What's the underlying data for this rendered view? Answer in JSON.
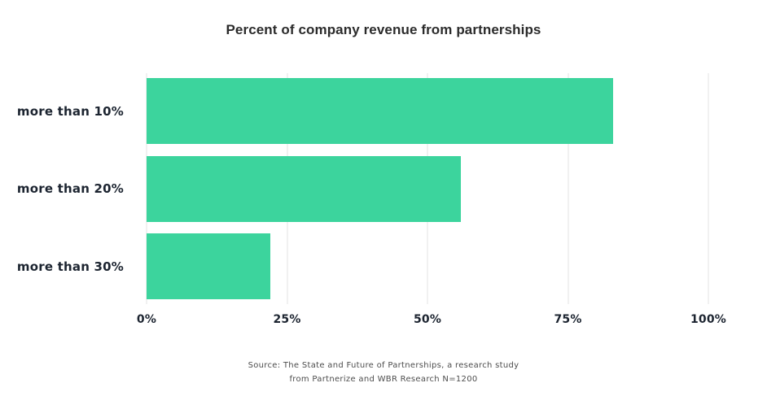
{
  "title": "Percent of company revenue from partnerships",
  "chart_data": {
    "type": "bar",
    "orientation": "horizontal",
    "title": "Percent of company revenue from partnerships",
    "categories": [
      "more than 10%",
      "more than 20%",
      "more than 30%"
    ],
    "values": [
      83,
      56,
      22
    ],
    "unit": "%",
    "xlabel": "",
    "ylabel": "",
    "xlim": [
      0,
      100
    ],
    "x_ticks": [
      0,
      25,
      50,
      75,
      100
    ],
    "x_tick_labels": [
      "0%",
      "25%",
      "50%",
      "75%",
      "100%"
    ],
    "grid": "vertical-gridlines-behind-bars",
    "legend": "none"
  },
  "source": {
    "line1": "Source: The State and Future of Partnerships, a research study",
    "line2": "from Partnerize and WBR Research N=1200"
  },
  "colors": {
    "bar": "#3cd49d",
    "gridline": "#f1f1f1",
    "title_text": "#2b2b2b",
    "label_text": "#1c2430",
    "source_text": "#4d4d4d",
    "background": "#ffffff"
  }
}
